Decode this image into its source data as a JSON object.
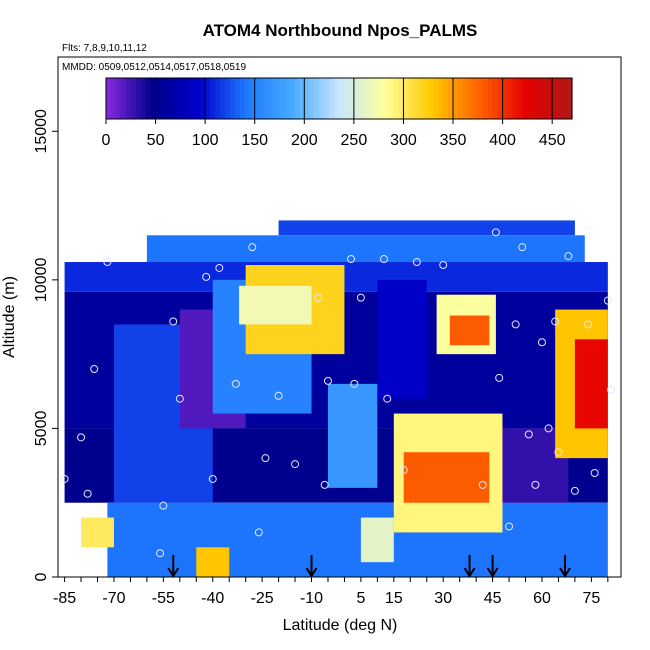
{
  "chart_data": {
    "type": "heatmap",
    "title": "ATOM4 Northbound Npos_PALMS",
    "flights_note": "Flts: 7,8,9,10,11,12",
    "dates_note": "MMDD: 0509,0512,0514,0517,0518,0519",
    "xlabel": "Latitude (deg N)",
    "ylabel": "Altitude (m)",
    "xlim": [
      -87,
      84
    ],
    "ylim": [
      0,
      17500
    ],
    "x_ticks": [
      -85,
      -70,
      -55,
      -40,
      -25,
      -10,
      5,
      15,
      30,
      45,
      60,
      75
    ],
    "x_tick_labels": [
      "-85",
      "-70",
      "-55",
      "-40",
      "-25",
      "-10",
      "5",
      "15",
      "30",
      "45",
      "60",
      "75"
    ],
    "y_ticks": [
      0,
      5000,
      10000,
      15000
    ],
    "y_tick_labels": [
      "0",
      "5000",
      "10000",
      "15000"
    ],
    "colorbar": {
      "min": 0,
      "max": 470,
      "ticks": [
        0,
        50,
        100,
        150,
        200,
        250,
        300,
        350,
        400,
        450
      ],
      "tick_labels": [
        "0",
        "50",
        "100",
        "150",
        "200",
        "250",
        "300",
        "350",
        "400",
        "450"
      ],
      "colors": [
        "#8a2be2",
        "#00008b",
        "#0000cd",
        "#1e78ff",
        "#46aaff",
        "#c8e6ff",
        "#ffff9a",
        "#ffc800",
        "#ff6400",
        "#e60000",
        "#b01818"
      ]
    },
    "cells": [
      {
        "lat0": -20,
        "lat1": 70,
        "alt0": 11500,
        "alt1": 12000,
        "value": 120
      },
      {
        "lat0": -60,
        "lat1": 73,
        "alt0": 10600,
        "alt1": 11500,
        "value": 140
      },
      {
        "lat0": -85,
        "lat1": 80,
        "alt0": 9600,
        "alt1": 10600,
        "value": 110
      },
      {
        "lat0": -85,
        "lat1": 80,
        "alt0": 5000,
        "alt1": 9600,
        "value": 60
      },
      {
        "lat0": -85,
        "lat1": 80,
        "alt0": 2500,
        "alt1": 5000,
        "value": 50
      },
      {
        "lat0": -72,
        "lat1": 80,
        "alt0": 0,
        "alt1": 2500,
        "value": 140
      },
      {
        "lat0": -70,
        "lat1": -40,
        "alt0": 2500,
        "alt1": 8500,
        "value": 120
      },
      {
        "lat0": -50,
        "lat1": -30,
        "alt0": 5000,
        "alt1": 9000,
        "value": 20
      },
      {
        "lat0": -40,
        "lat1": -10,
        "alt0": 5500,
        "alt1": 10000,
        "value": 150
      },
      {
        "lat0": -30,
        "lat1": 0,
        "alt0": 7500,
        "alt1": 10500,
        "value": 320
      },
      {
        "lat0": -32,
        "lat1": -10,
        "alt0": 8500,
        "alt1": 9800,
        "value": 270
      },
      {
        "lat0": -5,
        "lat1": 10,
        "alt0": 3000,
        "alt1": 6500,
        "value": 170
      },
      {
        "lat0": 10,
        "lat1": 25,
        "alt0": 6000,
        "alt1": 10000,
        "value": 90
      },
      {
        "lat0": 15,
        "lat1": 48,
        "alt0": 1500,
        "alt1": 5500,
        "value": 290
      },
      {
        "lat0": 18,
        "lat1": 44,
        "alt0": 2500,
        "alt1": 4200,
        "value": 380
      },
      {
        "lat0": 5,
        "lat1": 15,
        "alt0": 500,
        "alt1": 2000,
        "value": 260
      },
      {
        "lat0": 28,
        "lat1": 46,
        "alt0": 7500,
        "alt1": 9500,
        "value": 280
      },
      {
        "lat0": 32,
        "lat1": 44,
        "alt0": 7800,
        "alt1": 8800,
        "value": 380
      },
      {
        "lat0": 48,
        "lat1": 68,
        "alt0": 2500,
        "alt1": 5000,
        "value": 30
      },
      {
        "lat0": 64,
        "lat1": 80,
        "alt0": 4000,
        "alt1": 9000,
        "value": 330
      },
      {
        "lat0": 70,
        "lat1": 80,
        "alt0": 5000,
        "alt1": 8000,
        "value": 420
      },
      {
        "lat0": -80,
        "lat1": -70,
        "alt0": 1000,
        "alt1": 2000,
        "value": 300
      },
      {
        "lat0": -45,
        "lat1": -35,
        "alt0": 0,
        "alt1": 1000,
        "value": 330
      }
    ],
    "points": [
      {
        "lat": -85,
        "alt": 3300
      },
      {
        "lat": -80,
        "alt": 4700
      },
      {
        "lat": -78,
        "alt": 2800
      },
      {
        "lat": -76,
        "alt": 7000
      },
      {
        "lat": -72,
        "alt": 10600
      },
      {
        "lat": -56,
        "alt": 800
      },
      {
        "lat": -55,
        "alt": 2400
      },
      {
        "lat": -52,
        "alt": 8600
      },
      {
        "lat": -50,
        "alt": 6000
      },
      {
        "lat": -42,
        "alt": 10100
      },
      {
        "lat": -40,
        "alt": 3300
      },
      {
        "lat": -38,
        "alt": 10400
      },
      {
        "lat": -33,
        "alt": 6500
      },
      {
        "lat": -28,
        "alt": 11100
      },
      {
        "lat": -26,
        "alt": 1500
      },
      {
        "lat": -24,
        "alt": 4000
      },
      {
        "lat": -20,
        "alt": 6100
      },
      {
        "lat": -15,
        "alt": 3800
      },
      {
        "lat": -8,
        "alt": 9400
      },
      {
        "lat": -6,
        "alt": 3100
      },
      {
        "lat": -5,
        "alt": 6600
      },
      {
        "lat": 2,
        "alt": 10700
      },
      {
        "lat": 3,
        "alt": 6500
      },
      {
        "lat": 5,
        "alt": 9400
      },
      {
        "lat": 12,
        "alt": 10700
      },
      {
        "lat": 13,
        "alt": 6000
      },
      {
        "lat": 18,
        "alt": 3600
      },
      {
        "lat": 22,
        "alt": 10600
      },
      {
        "lat": 30,
        "alt": 10500
      },
      {
        "lat": 42,
        "alt": 3100
      },
      {
        "lat": 46,
        "alt": 11600
      },
      {
        "lat": 47,
        "alt": 6700
      },
      {
        "lat": 50,
        "alt": 1700
      },
      {
        "lat": 52,
        "alt": 8500
      },
      {
        "lat": 54,
        "alt": 11100
      },
      {
        "lat": 56,
        "alt": 4800
      },
      {
        "lat": 58,
        "alt": 3100
      },
      {
        "lat": 60,
        "alt": 7900
      },
      {
        "lat": 62,
        "alt": 5000
      },
      {
        "lat": 64,
        "alt": 8600
      },
      {
        "lat": 65,
        "alt": 4200
      },
      {
        "lat": 68,
        "alt": 10800
      },
      {
        "lat": 70,
        "alt": 2900
      },
      {
        "lat": 74,
        "alt": 8500
      },
      {
        "lat": 76,
        "alt": 3500
      },
      {
        "lat": 80,
        "alt": 9300
      },
      {
        "lat": 81,
        "alt": 6300
      }
    ],
    "arrows_lat": [
      -52,
      -10,
      38,
      45,
      67
    ]
  }
}
